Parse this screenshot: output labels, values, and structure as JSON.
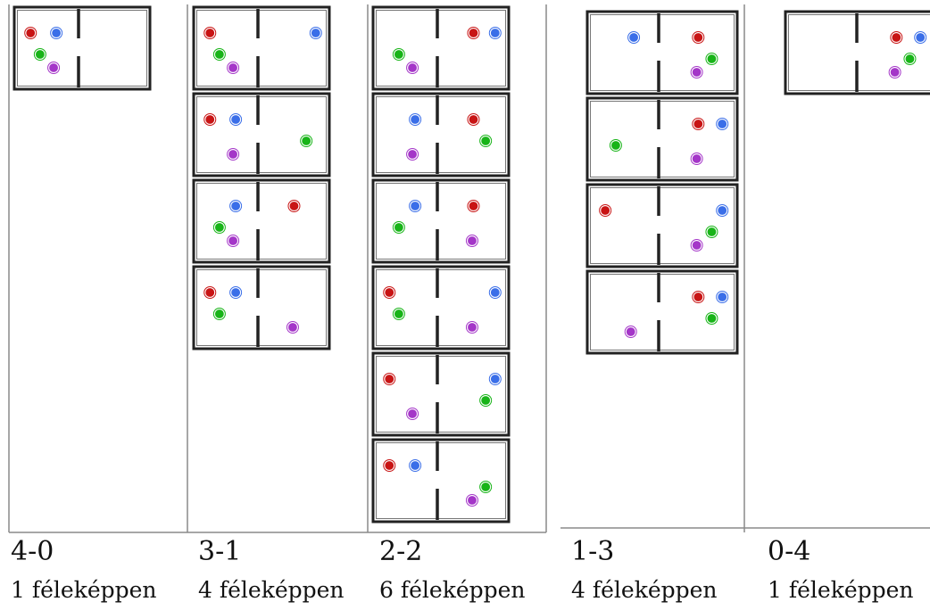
{
  "colors": {
    "red": "#c81414",
    "blue": "#3a6ee8",
    "green": "#18b418",
    "purple": "#a436c8",
    "wall": "#222222",
    "divider": "#8a8a8a"
  },
  "ball_keys": [
    "red",
    "blue",
    "green",
    "purple"
  ],
  "columns": [
    {
      "label": "4-0",
      "ways": "1 féleképpen",
      "arrangements": [
        {
          "left": [
            "red",
            "blue",
            "green",
            "purple"
          ],
          "right": []
        }
      ]
    },
    {
      "label": "3-1",
      "ways": "4 féleképpen",
      "arrangements": [
        {
          "left": [
            "red",
            "green",
            "purple"
          ],
          "right": [
            "blue"
          ]
        },
        {
          "left": [
            "red",
            "blue",
            "purple"
          ],
          "right": [
            "green"
          ]
        },
        {
          "left": [
            "blue",
            "green",
            "purple"
          ],
          "right": [
            "red"
          ]
        },
        {
          "left": [
            "red",
            "blue",
            "green"
          ],
          "right": [
            "purple"
          ]
        }
      ]
    },
    {
      "label": "2-2",
      "ways": "6 féleképpen",
      "arrangements": [
        {
          "left": [
            "green",
            "purple"
          ],
          "right": [
            "red",
            "blue"
          ]
        },
        {
          "left": [
            "blue",
            "purple"
          ],
          "right": [
            "red",
            "green"
          ]
        },
        {
          "left": [
            "blue",
            "green"
          ],
          "right": [
            "red",
            "purple"
          ]
        },
        {
          "left": [
            "red",
            "green"
          ],
          "right": [
            "blue",
            "purple"
          ]
        },
        {
          "left": [
            "red",
            "purple"
          ],
          "right": [
            "blue",
            "green"
          ]
        },
        {
          "left": [
            "red",
            "blue"
          ],
          "right": [
            "green",
            "purple"
          ]
        }
      ]
    },
    {
      "label": "1-3",
      "ways": "4 féleképpen",
      "arrangements": [
        {
          "left": [
            "blue"
          ],
          "right": [
            "red",
            "green",
            "purple"
          ]
        },
        {
          "left": [
            "green"
          ],
          "right": [
            "red",
            "blue",
            "purple"
          ]
        },
        {
          "left": [
            "red"
          ],
          "right": [
            "blue",
            "green",
            "purple"
          ]
        },
        {
          "left": [
            "purple"
          ],
          "right": [
            "red",
            "blue",
            "green"
          ]
        }
      ]
    },
    {
      "label": "0-4",
      "ways": "1 féleképpen",
      "arrangements": [
        {
          "left": [],
          "right": [
            "red",
            "blue",
            "green",
            "purple"
          ]
        }
      ]
    }
  ]
}
